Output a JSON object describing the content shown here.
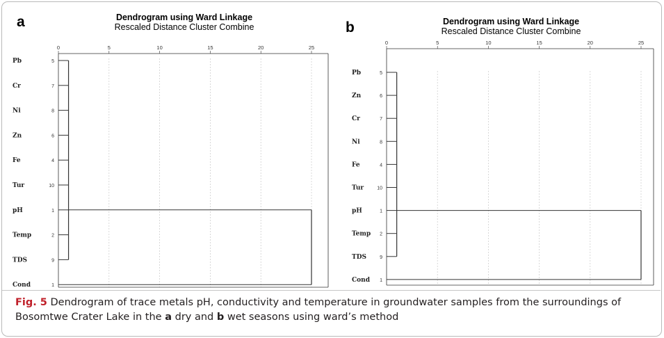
{
  "panels": [
    {
      "letter": "a",
      "title": "Dendrogram using Ward Linkage",
      "subtitle": "Rescaled Distance Cluster Combine"
    },
    {
      "letter": "b",
      "title": "Dendrogram using Ward Linkage",
      "subtitle": "Rescaled Distance Cluster Combine"
    }
  ],
  "caption": {
    "fig_label": "Fig. 5",
    "text_1": " Dendrogram of trace metals pH, conductivity and temperature in groundwater samples from the surroundings of Bosomtwe Crater Lake in the ",
    "panel_a": "a",
    "text_2": " dry and ",
    "panel_b": "b",
    "text_3": " wet seasons using ward’s method"
  },
  "colors": {
    "line": "#333333",
    "grid": "#c8c8c8",
    "caption_label": "#c0202a"
  },
  "chart_data": [
    {
      "type": "dendrogram",
      "title": "Dendrogram using Ward Linkage",
      "subtitle": "Rescaled Distance Cluster Combine",
      "x_ticks": [
        0,
        5,
        10,
        15,
        20,
        25
      ],
      "xlim": [
        0,
        25
      ],
      "grid": true,
      "leaves": [
        {
          "label": "Pb",
          "index": "5"
        },
        {
          "label": "Cr",
          "index": "7"
        },
        {
          "label": "Ni",
          "index": "8"
        },
        {
          "label": "Zn",
          "index": "6"
        },
        {
          "label": "Fe",
          "index": "4"
        },
        {
          "label": "Tur",
          "index": "10"
        },
        {
          "label": "pH",
          "index": "1"
        },
        {
          "label": "Temp",
          "index": "2"
        },
        {
          "label": "TDS",
          "index": "9"
        },
        {
          "label": "Cond",
          "index": "1"
        }
      ],
      "merges": [
        {
          "members": [
            "Pb",
            "Cr",
            "Ni",
            "Zn",
            "Fe",
            "Tur",
            "pH",
            "Temp",
            "TDS"
          ],
          "distance": 1
        },
        {
          "members": [
            "Pb",
            "Cr",
            "Ni",
            "Zn",
            "Fe",
            "Tur",
            "pH",
            "Temp",
            "TDS",
            "Cond"
          ],
          "distance": 25
        }
      ]
    },
    {
      "type": "dendrogram",
      "title": "Dendrogram using Ward Linkage",
      "subtitle": "Rescaled Distance Cluster Combine",
      "x_ticks": [
        0,
        5,
        10,
        15,
        20,
        25
      ],
      "xlim": [
        0,
        25
      ],
      "grid": true,
      "leaves": [
        {
          "label": "Pb",
          "index": "5"
        },
        {
          "label": "Zn",
          "index": "6"
        },
        {
          "label": "Cr",
          "index": "7"
        },
        {
          "label": "Ni",
          "index": "8"
        },
        {
          "label": "Fe",
          "index": "4"
        },
        {
          "label": "Tur",
          "index": "10"
        },
        {
          "label": "pH",
          "index": "1"
        },
        {
          "label": "Temp",
          "index": "2"
        },
        {
          "label": "TDS",
          "index": "9"
        },
        {
          "label": "Cond",
          "index": "1"
        }
      ],
      "merges": [
        {
          "members": [
            "Pb",
            "Zn",
            "Cr",
            "Ni",
            "Fe",
            "Tur",
            "pH",
            "Temp",
            "TDS"
          ],
          "distance": 1
        },
        {
          "members": [
            "Pb",
            "Zn",
            "Cr",
            "Ni",
            "Fe",
            "Tur",
            "pH",
            "Temp",
            "TDS",
            "Cond"
          ],
          "distance": 25
        }
      ]
    }
  ]
}
